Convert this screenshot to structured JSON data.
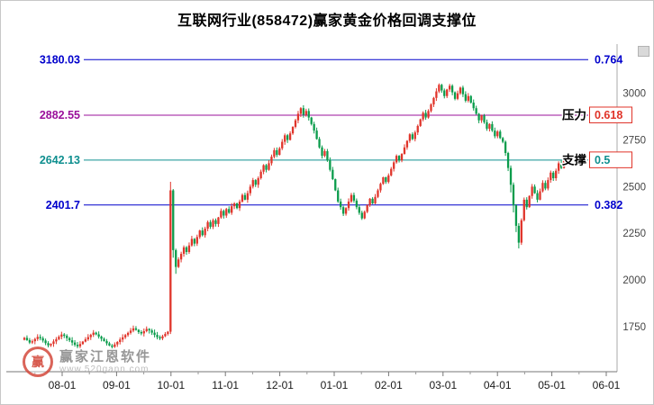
{
  "title": "互联网行业(858472)赢家黄金价格回调支撑位",
  "watermark": {
    "brand": "赢家江恩软件",
    "url": "www.520gann.com",
    "logo_char": "赢",
    "logo_color": "#cd3021"
  },
  "chart_data": {
    "type": "candlestick",
    "title": "互联网行业(858472)赢家黄金价格回调支撑位",
    "xlabel": "",
    "ylabel": "",
    "y_range": [
      1480,
      3215
    ],
    "y_ticks": [
      3000,
      2750,
      2500,
      2250,
      2000,
      1750
    ],
    "x_ticks": [
      "08-01",
      "09-01",
      "10-01",
      "11-01",
      "12-01",
      "01-01",
      "02-01",
      "03-01",
      "04-01",
      "05-01",
      "06-01"
    ],
    "grid": false,
    "legend": "none",
    "up_color": "#e0352b",
    "down_color": "#0b9c4c",
    "box_border_color": "#e03328",
    "fib_levels": [
      {
        "price": 3180.03,
        "price_label": "3180.03",
        "ratio": "0.764",
        "line_color": "#0000cc",
        "text_color": "#0000cc",
        "boxed": false,
        "tag": ""
      },
      {
        "price": 2882.55,
        "price_label": "2882.55",
        "ratio": "0.618",
        "line_color": "#9b109b",
        "text_color": "#e03328",
        "boxed": true,
        "tag": "压力"
      },
      {
        "price": 2642.13,
        "price_label": "2642.13",
        "ratio": "0.5",
        "line_color": "#0f8f8f",
        "text_color": "#0f8f8f",
        "boxed": true,
        "tag": "支撑"
      },
      {
        "price": 2401.7,
        "price_label": "2401.7",
        "ratio": "0.382",
        "line_color": "#0000cc",
        "text_color": "#0000cc",
        "boxed": false,
        "tag": ""
      }
    ],
    "closes": [
      1690,
      1678,
      1665,
      1672,
      1684,
      1695,
      1688,
      1676,
      1662,
      1650,
      1658,
      1671,
      1683,
      1696,
      1708,
      1701,
      1689,
      1677,
      1665,
      1653,
      1645,
      1657,
      1670,
      1682,
      1694,
      1706,
      1718,
      1709,
      1697,
      1685,
      1673,
      1661,
      1649,
      1642,
      1655,
      1668,
      1681,
      1693,
      1705,
      1717,
      1729,
      1741,
      1733,
      1721,
      1714,
      1726,
      1738,
      1730,
      1718,
      1706,
      1694,
      1687,
      1699,
      1711,
      1723,
      2480,
      2160,
      2070,
      2110,
      2140,
      2175,
      2150,
      2185,
      2220,
      2195,
      2230,
      2265,
      2240,
      2275,
      2310,
      2285,
      2320,
      2300,
      2335,
      2370,
      2345,
      2380,
      2360,
      2395,
      2410,
      2385,
      2420,
      2455,
      2430,
      2465,
      2500,
      2535,
      2510,
      2545,
      2580,
      2615,
      2590,
      2625,
      2660,
      2695,
      2670,
      2705,
      2740,
      2775,
      2750,
      2785,
      2820,
      2855,
      2890,
      2920,
      2885,
      2905,
      2870,
      2835,
      2800,
      2755,
      2710,
      2665,
      2690,
      2640,
      2590,
      2540,
      2480,
      2420,
      2390,
      2355,
      2385,
      2420,
      2455,
      2425,
      2390,
      2360,
      2330,
      2365,
      2400,
      2435,
      2410,
      2445,
      2480,
      2515,
      2550,
      2525,
      2560,
      2595,
      2630,
      2665,
      2640,
      2675,
      2710,
      2745,
      2780,
      2755,
      2790,
      2825,
      2860,
      2895,
      2870,
      2905,
      2940,
      2975,
      3010,
      3045,
      3015,
      2985,
      3020,
      3040,
      3005,
      2970,
      3000,
      3030,
      2995,
      2960,
      2985,
      2950,
      2920,
      2890,
      2855,
      2880,
      2845,
      2810,
      2835,
      2800,
      2770,
      2795,
      2760,
      2740,
      2680,
      2600,
      2510,
      2400,
      2290,
      2200,
      2320,
      2430,
      2390,
      2450,
      2500,
      2465,
      2430,
      2475,
      2520,
      2490,
      2535,
      2575,
      2545,
      2585,
      2625,
      2600,
      2640,
      2665
    ]
  }
}
